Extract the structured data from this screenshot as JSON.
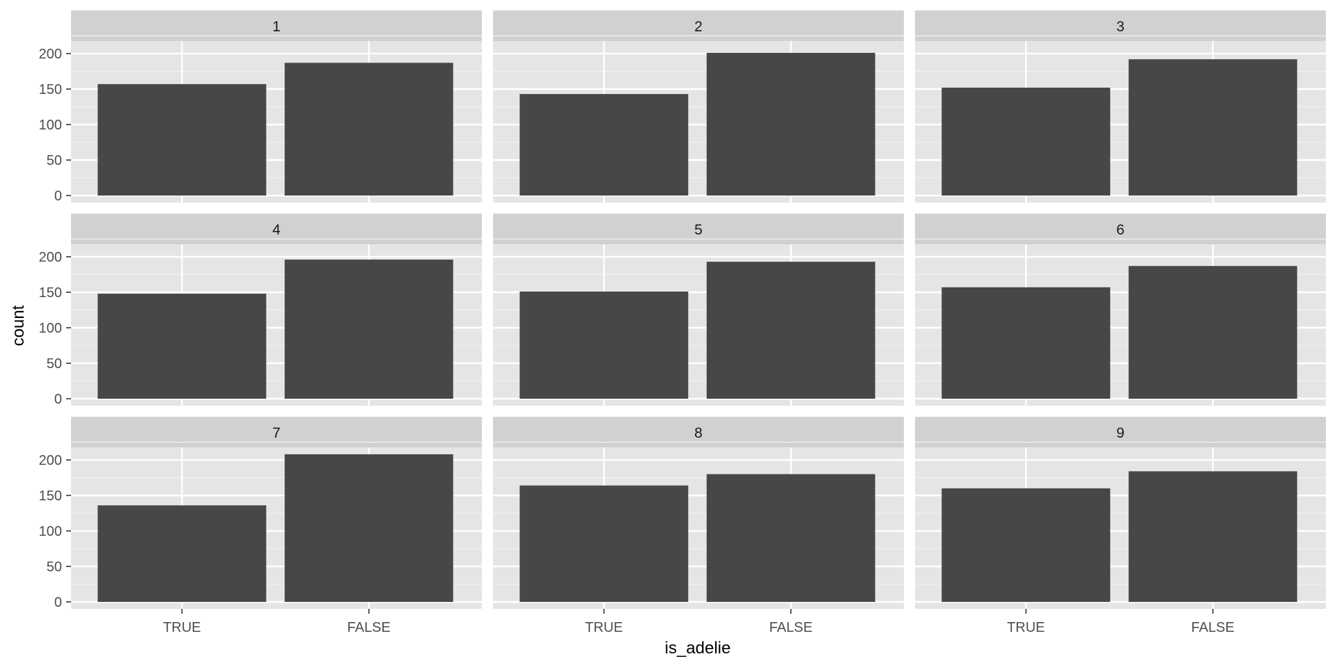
{
  "chart_data": {
    "type": "bar",
    "facet_layout": "3x3 grid",
    "xlabel": "is_adelie",
    "ylabel": "count",
    "categories": [
      "TRUE",
      "FALSE"
    ],
    "y_ticks": [
      0,
      50,
      100,
      150,
      200
    ],
    "ylim": [
      0,
      250
    ],
    "grid": true,
    "bar_color": "#474747",
    "panel_background": "#e5e5e5",
    "strip_background": "#d1d1d1",
    "facets": [
      {
        "label": "1",
        "values": [
          157,
          187
        ]
      },
      {
        "label": "2",
        "values": [
          143,
          201
        ]
      },
      {
        "label": "3",
        "values": [
          152,
          192
        ]
      },
      {
        "label": "4",
        "values": [
          148,
          196
        ]
      },
      {
        "label": "5",
        "values": [
          151,
          193
        ]
      },
      {
        "label": "6",
        "values": [
          157,
          187
        ]
      },
      {
        "label": "7",
        "values": [
          136,
          208
        ]
      },
      {
        "label": "8",
        "values": [
          164,
          180
        ]
      },
      {
        "label": "9",
        "values": [
          160,
          184
        ]
      }
    ]
  }
}
